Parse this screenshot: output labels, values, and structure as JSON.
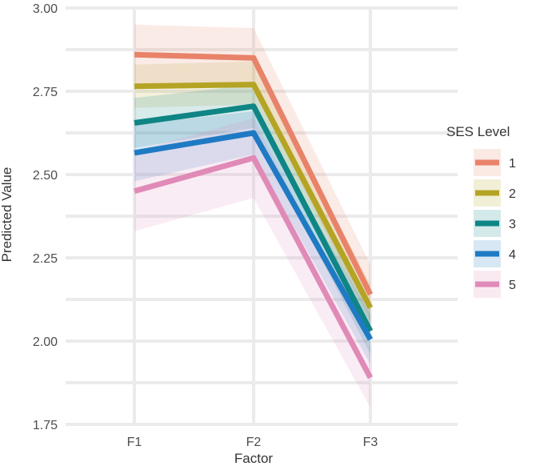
{
  "chart_data": {
    "type": "line",
    "xlabel": "Factor",
    "ylabel": "Predicted Value",
    "categories": [
      "F1",
      "F2",
      "F3"
    ],
    "ylim": [
      1.75,
      3.0
    ],
    "yticks": [
      "1.75",
      "2.00",
      "2.25",
      "2.50",
      "2.75",
      "3.00"
    ],
    "grid": true,
    "legend": {
      "title": "SES Level",
      "placement": "right"
    },
    "series": [
      {
        "name": "1",
        "color": "#e8836a",
        "values": [
          2.86,
          2.85,
          2.14
        ],
        "lower": [
          2.77,
          2.76,
          2.06
        ],
        "upper": [
          2.95,
          2.94,
          2.23
        ]
      },
      {
        "name": "2",
        "color": "#b5a424",
        "values": [
          2.765,
          2.77,
          2.1
        ],
        "lower": [
          2.7,
          2.71,
          2.03
        ],
        "upper": [
          2.83,
          2.84,
          2.17
        ]
      },
      {
        "name": "3",
        "color": "#0f8585",
        "values": [
          2.655,
          2.705,
          2.03
        ],
        "lower": [
          2.58,
          2.64,
          1.96
        ],
        "upper": [
          2.73,
          2.77,
          2.1
        ]
      },
      {
        "name": "4",
        "color": "#1f7ac4",
        "values": [
          2.565,
          2.625,
          2.005
        ],
        "lower": [
          2.48,
          2.56,
          1.93
        ],
        "upper": [
          2.65,
          2.69,
          2.08
        ]
      },
      {
        "name": "5",
        "color": "#e08ab8",
        "values": [
          2.45,
          2.55,
          1.89
        ],
        "lower": [
          2.33,
          2.43,
          1.8
        ],
        "upper": [
          2.57,
          2.67,
          1.98
        ]
      }
    ]
  }
}
